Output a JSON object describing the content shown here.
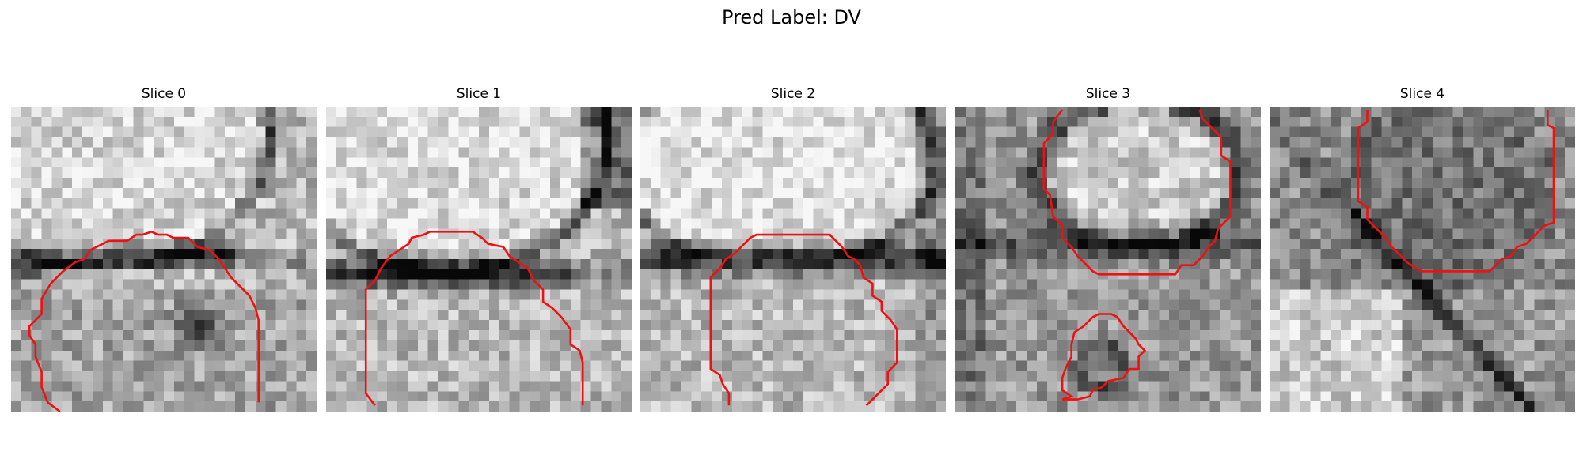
{
  "figure": {
    "title": "Pred Label: DV"
  },
  "colors": {
    "contour": "#ee1111",
    "background": "#ffffff"
  },
  "slices": [
    {
      "title": "Slice 0",
      "image_description": "grayscale microscopy patch; bright textured blob upper-left bounded by dark curved membrane band running horizontally across middle and up the right side",
      "contours": [
        [
          [
            0.16,
            1.0
          ],
          [
            0.12,
            0.97
          ],
          [
            0.1,
            0.92
          ],
          [
            0.1,
            0.87
          ],
          [
            0.08,
            0.82
          ],
          [
            0.08,
            0.78
          ],
          [
            0.06,
            0.75
          ],
          [
            0.06,
            0.72
          ],
          [
            0.1,
            0.68
          ],
          [
            0.1,
            0.63
          ],
          [
            0.13,
            0.58
          ],
          [
            0.17,
            0.54
          ],
          [
            0.21,
            0.51
          ],
          [
            0.24,
            0.5
          ],
          [
            0.26,
            0.47
          ],
          [
            0.3,
            0.45
          ],
          [
            0.32,
            0.44
          ],
          [
            0.38,
            0.44
          ],
          [
            0.41,
            0.42
          ],
          [
            0.43,
            0.42
          ],
          [
            0.46,
            0.41
          ],
          [
            0.48,
            0.42
          ],
          [
            0.51,
            0.42
          ],
          [
            0.53,
            0.43
          ],
          [
            0.58,
            0.43
          ],
          [
            0.61,
            0.46
          ],
          [
            0.65,
            0.47
          ],
          [
            0.68,
            0.5
          ],
          [
            0.7,
            0.53
          ],
          [
            0.72,
            0.56
          ],
          [
            0.75,
            0.59
          ],
          [
            0.78,
            0.62
          ],
          [
            0.8,
            0.66
          ],
          [
            0.81,
            0.7
          ],
          [
            0.81,
            0.8
          ],
          [
            0.81,
            0.97
          ]
        ]
      ]
    },
    {
      "title": "Slice 1",
      "image_description": "grayscale microscopy patch; bright oval blob upper area, dark horizontal membrane band at mid height",
      "contours": [
        [
          [
            0.16,
            0.98
          ],
          [
            0.13,
            0.94
          ],
          [
            0.13,
            0.6
          ],
          [
            0.16,
            0.57
          ],
          [
            0.18,
            0.53
          ],
          [
            0.21,
            0.49
          ],
          [
            0.24,
            0.47
          ],
          [
            0.27,
            0.45
          ],
          [
            0.28,
            0.43
          ],
          [
            0.32,
            0.42
          ],
          [
            0.34,
            0.41
          ],
          [
            0.48,
            0.41
          ],
          [
            0.51,
            0.43
          ],
          [
            0.53,
            0.45
          ],
          [
            0.58,
            0.46
          ],
          [
            0.6,
            0.49
          ],
          [
            0.63,
            0.51
          ],
          [
            0.66,
            0.53
          ],
          [
            0.68,
            0.57
          ],
          [
            0.71,
            0.6
          ],
          [
            0.71,
            0.64
          ],
          [
            0.74,
            0.66
          ],
          [
            0.77,
            0.69
          ],
          [
            0.8,
            0.73
          ],
          [
            0.8,
            0.78
          ],
          [
            0.83,
            0.8
          ],
          [
            0.84,
            0.84
          ],
          [
            0.84,
            0.98
          ]
        ]
      ]
    },
    {
      "title": "Slice 2",
      "image_description": "grayscale microscopy patch; large bright rounded blob upper area, dark horizontal membrane band below it",
      "contours": [
        [
          [
            0.29,
            0.98
          ],
          [
            0.29,
            0.94
          ],
          [
            0.27,
            0.91
          ],
          [
            0.26,
            0.88
          ],
          [
            0.23,
            0.86
          ],
          [
            0.23,
            0.56
          ],
          [
            0.26,
            0.53
          ],
          [
            0.28,
            0.5
          ],
          [
            0.31,
            0.48
          ],
          [
            0.33,
            0.46
          ],
          [
            0.36,
            0.43
          ],
          [
            0.38,
            0.42
          ],
          [
            0.62,
            0.42
          ],
          [
            0.64,
            0.44
          ],
          [
            0.66,
            0.46
          ],
          [
            0.68,
            0.49
          ],
          [
            0.7,
            0.5
          ],
          [
            0.72,
            0.52
          ],
          [
            0.73,
            0.56
          ],
          [
            0.76,
            0.58
          ],
          [
            0.76,
            0.62
          ],
          [
            0.79,
            0.64
          ],
          [
            0.79,
            0.67
          ],
          [
            0.82,
            0.7
          ],
          [
            0.84,
            0.73
          ],
          [
            0.84,
            0.84
          ],
          [
            0.81,
            0.87
          ],
          [
            0.81,
            0.91
          ],
          [
            0.78,
            0.94
          ],
          [
            0.74,
            0.98
          ]
        ]
      ]
    },
    {
      "title": "Slice 3",
      "image_description": "grayscale microscopy patch, noisier; bright blob upper-center with dark membrane around it, smaller dark blob near bottom",
      "contours": [
        [
          [
            0.35,
            0.01
          ],
          [
            0.32,
            0.05
          ],
          [
            0.32,
            0.09
          ],
          [
            0.29,
            0.12
          ],
          [
            0.29,
            0.27
          ],
          [
            0.31,
            0.29
          ],
          [
            0.32,
            0.36
          ],
          [
            0.35,
            0.39
          ],
          [
            0.35,
            0.43
          ],
          [
            0.38,
            0.46
          ],
          [
            0.4,
            0.49
          ],
          [
            0.43,
            0.52
          ],
          [
            0.45,
            0.54
          ],
          [
            0.47,
            0.55
          ],
          [
            0.72,
            0.55
          ],
          [
            0.74,
            0.52
          ],
          [
            0.78,
            0.52
          ],
          [
            0.81,
            0.49
          ],
          [
            0.83,
            0.46
          ],
          [
            0.85,
            0.44
          ],
          [
            0.86,
            0.4
          ],
          [
            0.9,
            0.36
          ],
          [
            0.9,
            0.18
          ],
          [
            0.87,
            0.16
          ],
          [
            0.87,
            0.1
          ],
          [
            0.84,
            0.07
          ],
          [
            0.81,
            0.04
          ],
          [
            0.8,
            0.01
          ]
        ],
        [
          [
            0.35,
            0.96
          ],
          [
            0.4,
            0.96
          ],
          [
            0.44,
            0.95
          ],
          [
            0.45,
            0.93
          ],
          [
            0.48,
            0.92
          ],
          [
            0.5,
            0.9
          ],
          [
            0.55,
            0.89
          ],
          [
            0.57,
            0.86
          ],
          [
            0.6,
            0.86
          ],
          [
            0.6,
            0.82
          ],
          [
            0.62,
            0.8
          ],
          [
            0.6,
            0.78
          ],
          [
            0.59,
            0.76
          ],
          [
            0.57,
            0.74
          ],
          [
            0.55,
            0.72
          ],
          [
            0.53,
            0.69
          ],
          [
            0.51,
            0.68
          ],
          [
            0.47,
            0.68
          ],
          [
            0.45,
            0.69
          ],
          [
            0.42,
            0.72
          ],
          [
            0.39,
            0.74
          ],
          [
            0.38,
            0.78
          ],
          [
            0.38,
            0.82
          ],
          [
            0.36,
            0.86
          ],
          [
            0.35,
            0.89
          ],
          [
            0.35,
            0.93
          ],
          [
            0.38,
            0.95
          ],
          [
            0.35,
            0.96
          ]
        ]
      ]
    },
    {
      "title": "Slice 4",
      "image_description": "grayscale microscopy patch, darker textured region upper area, dark diagonal band lower right",
      "contours": [
        [
          [
            0.32,
            0.01
          ],
          [
            0.32,
            0.05
          ],
          [
            0.29,
            0.07
          ],
          [
            0.29,
            0.31
          ],
          [
            0.32,
            0.33
          ],
          [
            0.32,
            0.37
          ],
          [
            0.35,
            0.4
          ],
          [
            0.38,
            0.43
          ],
          [
            0.4,
            0.46
          ],
          [
            0.43,
            0.49
          ],
          [
            0.45,
            0.51
          ],
          [
            0.48,
            0.53
          ],
          [
            0.5,
            0.54
          ],
          [
            0.72,
            0.54
          ],
          [
            0.74,
            0.52
          ],
          [
            0.76,
            0.5
          ],
          [
            0.79,
            0.49
          ],
          [
            0.81,
            0.46
          ],
          [
            0.84,
            0.45
          ],
          [
            0.86,
            0.43
          ],
          [
            0.88,
            0.41
          ],
          [
            0.9,
            0.39
          ],
          [
            0.93,
            0.38
          ],
          [
            0.93,
            0.07
          ],
          [
            0.91,
            0.06
          ],
          [
            0.91,
            0.01
          ]
        ]
      ]
    }
  ]
}
